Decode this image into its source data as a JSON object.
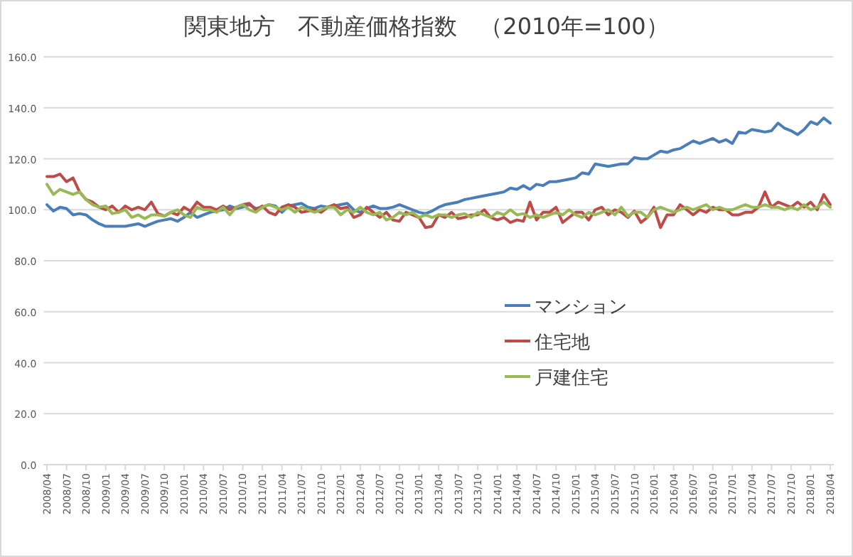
{
  "chart_data": {
    "type": "line",
    "title": "関東地方　不動産価格指数　（2010年=100）",
    "categories": [
      "2008/04",
      null,
      null,
      "2008/07",
      null,
      null,
      "2008/10",
      null,
      null,
      "2009/01",
      null,
      null,
      "2009/04",
      null,
      null,
      "2009/07",
      null,
      null,
      "2009/10",
      null,
      null,
      "2010/01",
      null,
      null,
      "2010/04",
      null,
      null,
      "2010/07",
      null,
      null,
      "2010/10",
      null,
      null,
      "2011/01",
      null,
      null,
      "2011/04",
      null,
      null,
      "2011/07",
      null,
      null,
      "2011/10",
      null,
      null,
      "2012/01",
      null,
      null,
      "2012/04",
      null,
      null,
      "2012/07",
      null,
      null,
      "2012/10",
      null,
      null,
      "2013/01",
      null,
      null,
      "2013/04",
      null,
      null,
      "2013/07",
      null,
      null,
      "2013/10",
      null,
      null,
      "2014/01",
      null,
      null,
      "2014/04",
      null,
      null,
      "2014/07",
      null,
      null,
      "2014/10",
      null,
      null,
      "2015/01",
      null,
      null,
      "2015/04",
      null,
      null,
      "2015/07",
      null,
      null,
      "2015/10",
      null,
      null,
      "2016/01",
      null,
      null,
      "2016/04",
      null,
      null,
      "2016/07",
      null,
      null,
      "2016/10",
      null,
      null,
      "2017/01",
      null,
      null,
      "2017/04",
      null,
      null,
      "2017/07",
      null,
      null,
      "2017/10",
      null,
      null,
      "2018/01",
      null,
      null,
      "2018/04"
    ],
    "series": [
      {
        "name": "マンション",
        "color": "#4a7ebb",
        "values": [
          102,
          99.5,
          101,
          100.5,
          98,
          98.5,
          98,
          96,
          94.5,
          93.5,
          93.5,
          93.5,
          93.5,
          94,
          94.5,
          93.5,
          94.5,
          95.5,
          96,
          96.5,
          95.5,
          97,
          99,
          97,
          98,
          99,
          99.5,
          100,
          101.5,
          100.5,
          101,
          102,
          100.5,
          101,
          102,
          101.5,
          99,
          101.5,
          102,
          102.5,
          101,
          100.5,
          101.5,
          101,
          101.5,
          102,
          102.5,
          100,
          99,
          100.5,
          101.5,
          100.5,
          100.5,
          101,
          102,
          101,
          100,
          99,
          98.5,
          99.5,
          101,
          102,
          102.5,
          103,
          104,
          104.5,
          105,
          105.5,
          106,
          106.5,
          107,
          108.5,
          108,
          109.5,
          108,
          110,
          109.5,
          111,
          111,
          111.5,
          112,
          112.5,
          114.5,
          114,
          118,
          117.5,
          117,
          117.5,
          118,
          118,
          120.5,
          120,
          120,
          121.5,
          123,
          122.5,
          123.5,
          124,
          125.5,
          127,
          126,
          127,
          128,
          126.5,
          127.5,
          126,
          130.5,
          130,
          131.5,
          131,
          130.5,
          131,
          134,
          132,
          131,
          129.5,
          131.5,
          134.5,
          133.5,
          136,
          134
        ]
      },
      {
        "name": "住宅地",
        "color": "#be4b48",
        "values": [
          113,
          113,
          114,
          111,
          112.5,
          107,
          104,
          103,
          101,
          100,
          101.5,
          99,
          101.5,
          100,
          101,
          100,
          103,
          98.5,
          97.5,
          99,
          98,
          101,
          99.5,
          103,
          101,
          101,
          100,
          101.5,
          100,
          101,
          102,
          102.5,
          100,
          101.5,
          99,
          98,
          101,
          102,
          101,
          99,
          99.5,
          100,
          99,
          101,
          102,
          100.5,
          101,
          97,
          98,
          101,
          99,
          97,
          99,
          96,
          95.5,
          99,
          98,
          97,
          93,
          93.5,
          98,
          97,
          99,
          96.5,
          97,
          98,
          98,
          100,
          97,
          96,
          97,
          95,
          96,
          95.5,
          103,
          96,
          99,
          99,
          101,
          95,
          97,
          99,
          99,
          96,
          100,
          101,
          98,
          100,
          99,
          97,
          99.5,
          95,
          97,
          101,
          93,
          98,
          98,
          102,
          100,
          98,
          100,
          99,
          101,
          100,
          100,
          98,
          98,
          99,
          99,
          101,
          107,
          101,
          103,
          102,
          101,
          103,
          101,
          103,
          100,
          106,
          102
        ]
      },
      {
        "name": "戸建住宅",
        "color": "#98b954",
        "values": [
          110,
          106,
          108,
          107,
          106,
          107,
          104,
          102,
          101,
          101.5,
          98.5,
          99,
          100,
          97,
          98,
          96.5,
          98,
          98,
          97.5,
          99,
          100,
          98,
          97,
          101,
          100,
          100,
          99,
          101,
          98,
          101,
          102,
          100,
          99,
          101,
          102,
          101,
          100,
          101,
          99,
          101,
          100,
          99,
          100,
          101,
          101,
          98,
          100,
          99,
          101,
          99,
          98,
          99,
          96,
          97,
          99,
          98,
          99,
          97,
          98,
          97,
          98,
          98,
          97,
          98,
          98.5,
          97,
          99,
          98,
          97,
          99,
          98,
          100,
          98,
          98.5,
          97,
          98,
          97,
          98,
          99,
          98,
          100,
          98,
          97,
          99,
          98,
          99,
          100,
          98,
          101,
          97.5,
          99,
          99,
          97,
          100,
          101,
          100,
          99,
          100,
          101,
          100,
          101,
          102,
          100,
          101,
          100,
          100,
          101,
          102,
          101,
          101,
          102,
          101,
          101,
          100,
          101,
          100,
          102,
          100,
          101,
          103,
          101
        ]
      }
    ],
    "ylim": [
      0,
      160
    ],
    "yticks": [
      {
        "value": 0,
        "label": "0.0"
      },
      {
        "value": 20,
        "label": "20.0"
      },
      {
        "value": 40,
        "label": "40.0"
      },
      {
        "value": 60,
        "label": "60.0"
      },
      {
        "value": 80,
        "label": "80.0"
      },
      {
        "value": 100,
        "label": "100.0"
      },
      {
        "value": 120,
        "label": "120.0"
      },
      {
        "value": 140,
        "label": "140.0"
      },
      {
        "value": 160,
        "label": "160.0"
      }
    ],
    "grid": "y",
    "legend": "right",
    "marker": "none",
    "line_style": "solid"
  }
}
